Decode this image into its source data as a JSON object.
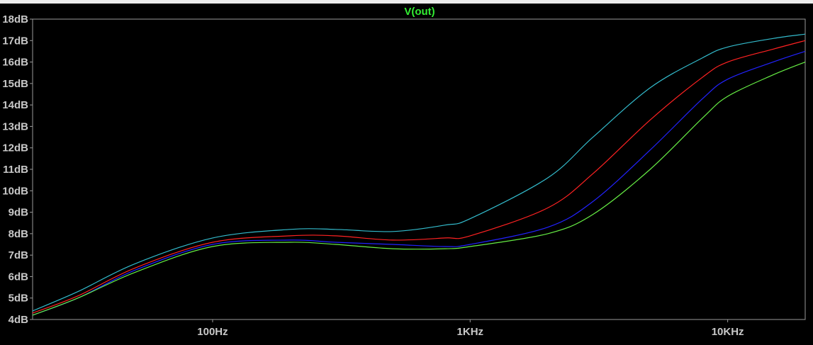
{
  "chart_data": {
    "type": "line",
    "title": "V(out)",
    "x_scale": "log",
    "xlim": [
      20,
      20000
    ],
    "ylim": [
      4,
      18
    ],
    "y_ticks": [
      {
        "value": 18,
        "label": "18dB"
      },
      {
        "value": 17,
        "label": "17dB"
      },
      {
        "value": 16,
        "label": "16dB"
      },
      {
        "value": 15,
        "label": "15dB"
      },
      {
        "value": 14,
        "label": "14dB"
      },
      {
        "value": 13,
        "label": "13dB"
      },
      {
        "value": 12,
        "label": "12dB"
      },
      {
        "value": 11,
        "label": "11dB"
      },
      {
        "value": 10,
        "label": "10dB"
      },
      {
        "value": 9,
        "label": "9dB"
      },
      {
        "value": 8,
        "label": "8dB"
      },
      {
        "value": 7,
        "label": "7dB"
      },
      {
        "value": 6,
        "label": "6dB"
      },
      {
        "value": 5,
        "label": "5dB"
      },
      {
        "value": 4,
        "label": "4dB"
      }
    ],
    "x_ticks": [
      {
        "value": 100,
        "label": "100Hz"
      },
      {
        "value": 1000,
        "label": "1KHz"
      },
      {
        "value": 10000,
        "label": "10KHz"
      }
    ],
    "grid": false,
    "x": [
      20,
      30,
      50,
      100,
      200,
      300,
      500,
      800,
      1000,
      2000,
      3000,
      5000,
      8000,
      10000,
      15000,
      20000
    ],
    "series": [
      {
        "color": "#33bbcc",
        "values": [
          4.4,
          5.3,
          6.6,
          7.8,
          8.2,
          8.2,
          8.1,
          8.4,
          8.7,
          10.6,
          12.5,
          14.8,
          16.2,
          16.7,
          17.1,
          17.3
        ]
      },
      {
        "color": "#ff2222",
        "values": [
          4.3,
          5.1,
          6.4,
          7.6,
          7.9,
          7.9,
          7.7,
          7.8,
          7.9,
          9.2,
          10.8,
          13.3,
          15.3,
          16.0,
          16.6,
          17.0
        ]
      },
      {
        "color": "#2222ff",
        "values": [
          4.2,
          5.0,
          6.3,
          7.5,
          7.7,
          7.6,
          7.5,
          7.4,
          7.5,
          8.3,
          9.5,
          11.9,
          14.3,
          15.2,
          16.0,
          16.5
        ]
      },
      {
        "color": "#66ee44",
        "values": [
          4.2,
          5.0,
          6.2,
          7.4,
          7.6,
          7.5,
          7.3,
          7.3,
          7.4,
          8.0,
          8.9,
          11.0,
          13.4,
          14.4,
          15.4,
          16.0
        ]
      }
    ]
  }
}
